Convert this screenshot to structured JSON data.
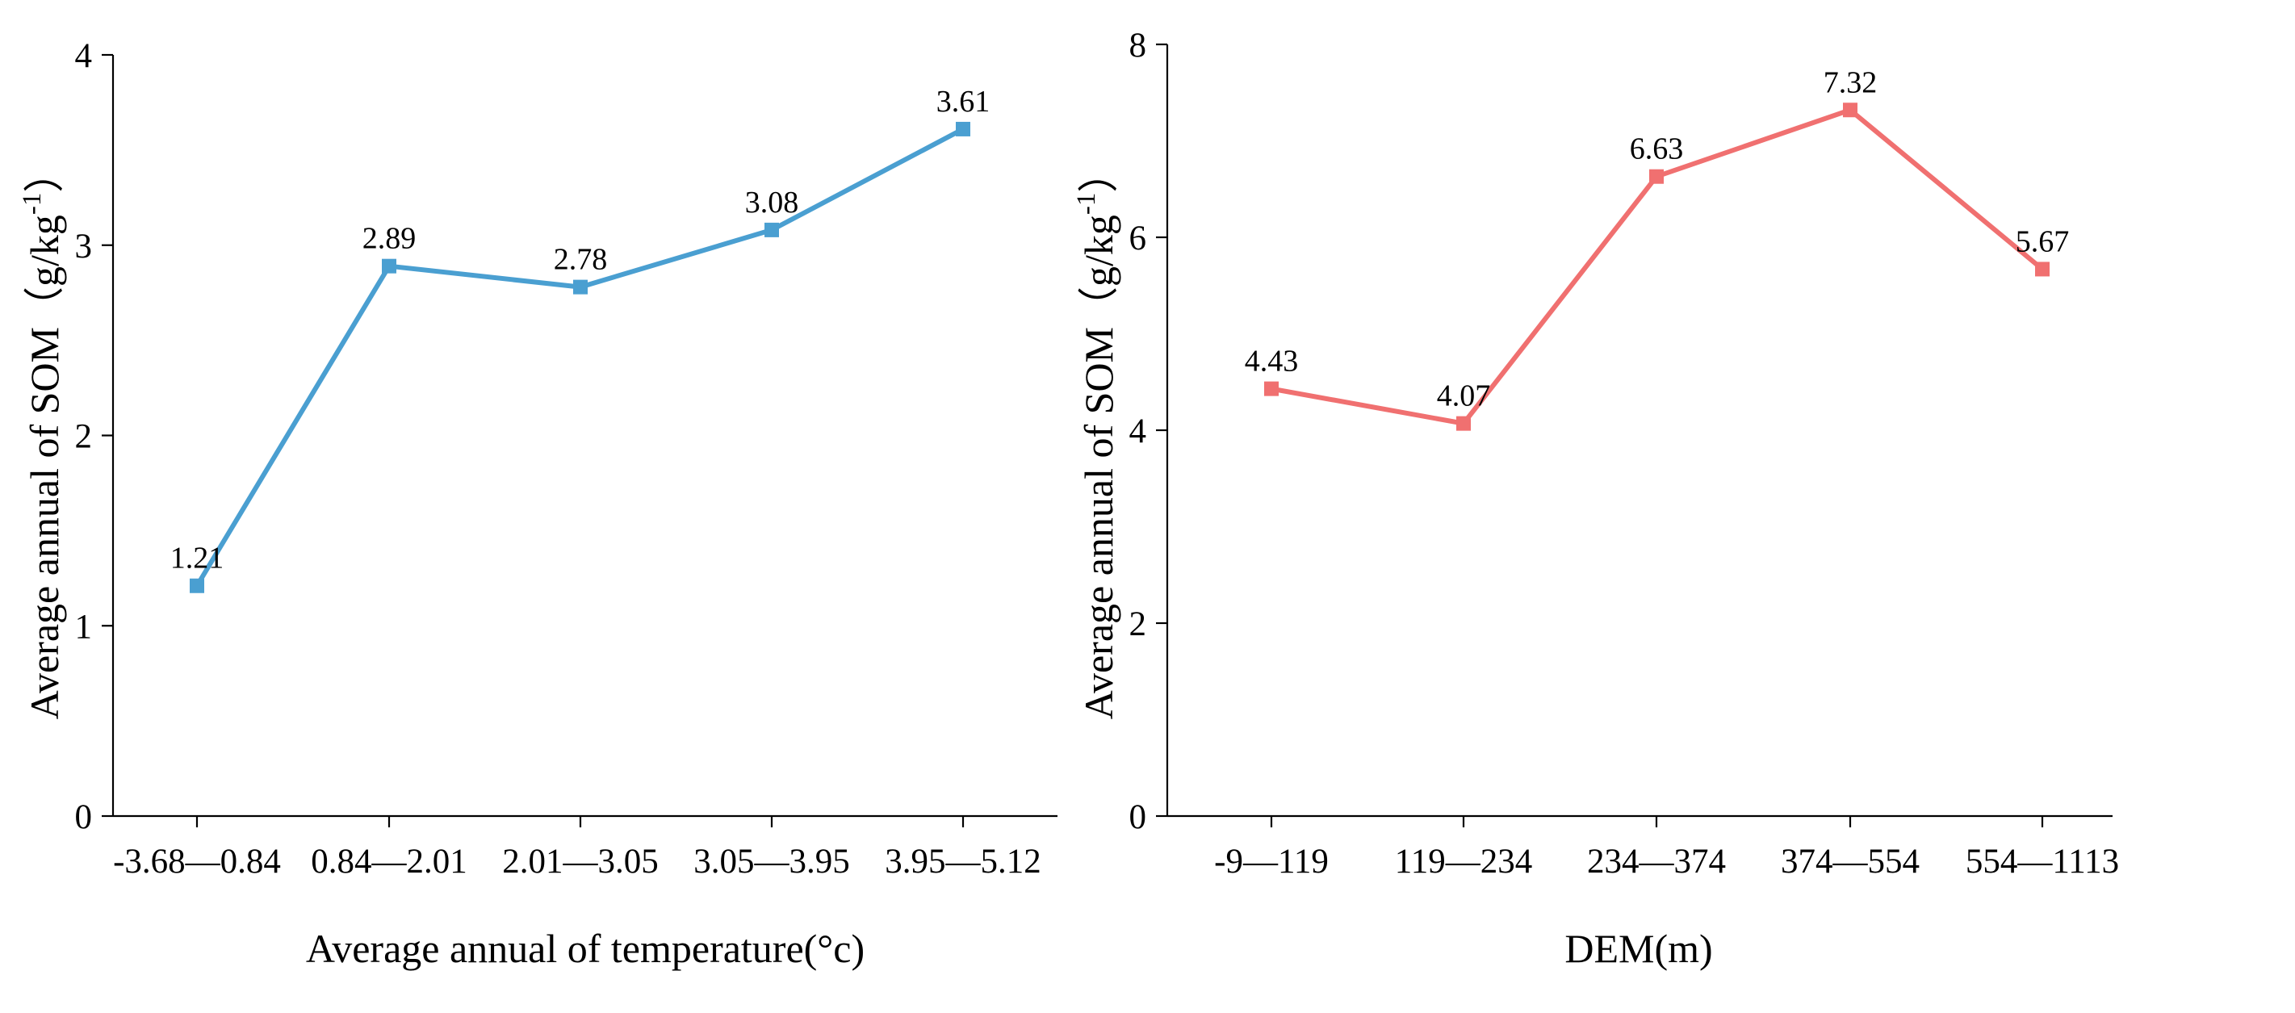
{
  "chart_data": [
    {
      "type": "line",
      "categories": [
        "-3.68—0.84",
        "0.84—2.01",
        "2.01—3.05",
        "3.05—3.95",
        "3.95—5.12"
      ],
      "values": [
        1.21,
        2.89,
        2.78,
        3.08,
        3.61
      ],
      "data_labels": [
        "1.21",
        "2.89",
        "2.78",
        "3.08",
        "3.61"
      ],
      "xlabel": "Average annual of temperature(°c)",
      "ylabel": "Average annual of SOM（g/kg",
      "ylabel_sup": "-1",
      "ylabel_close": "）",
      "ylim": [
        0,
        4
      ],
      "yticks": [
        "0",
        "1",
        "2",
        "3",
        "4"
      ],
      "color": "#4a9fd1",
      "marker": "square",
      "grid": false
    },
    {
      "type": "line",
      "categories": [
        "-9—119",
        "119—234",
        "234—374",
        "374—554",
        "554—1113"
      ],
      "values": [
        4.43,
        4.07,
        6.63,
        7.32,
        5.67
      ],
      "data_labels": [
        "4.43",
        "4.07",
        "6.63",
        "7.32",
        "5.67"
      ],
      "xlabel": "DEM(m)",
      "ylabel": "Average annual of SOM（g/kg",
      "ylabel_sup": "-1",
      "ylabel_close": "）",
      "ylim": [
        0,
        8
      ],
      "yticks": [
        "0",
        "2",
        "4",
        "6",
        "8"
      ],
      "color": "#f07070",
      "marker": "square",
      "grid": false
    }
  ]
}
